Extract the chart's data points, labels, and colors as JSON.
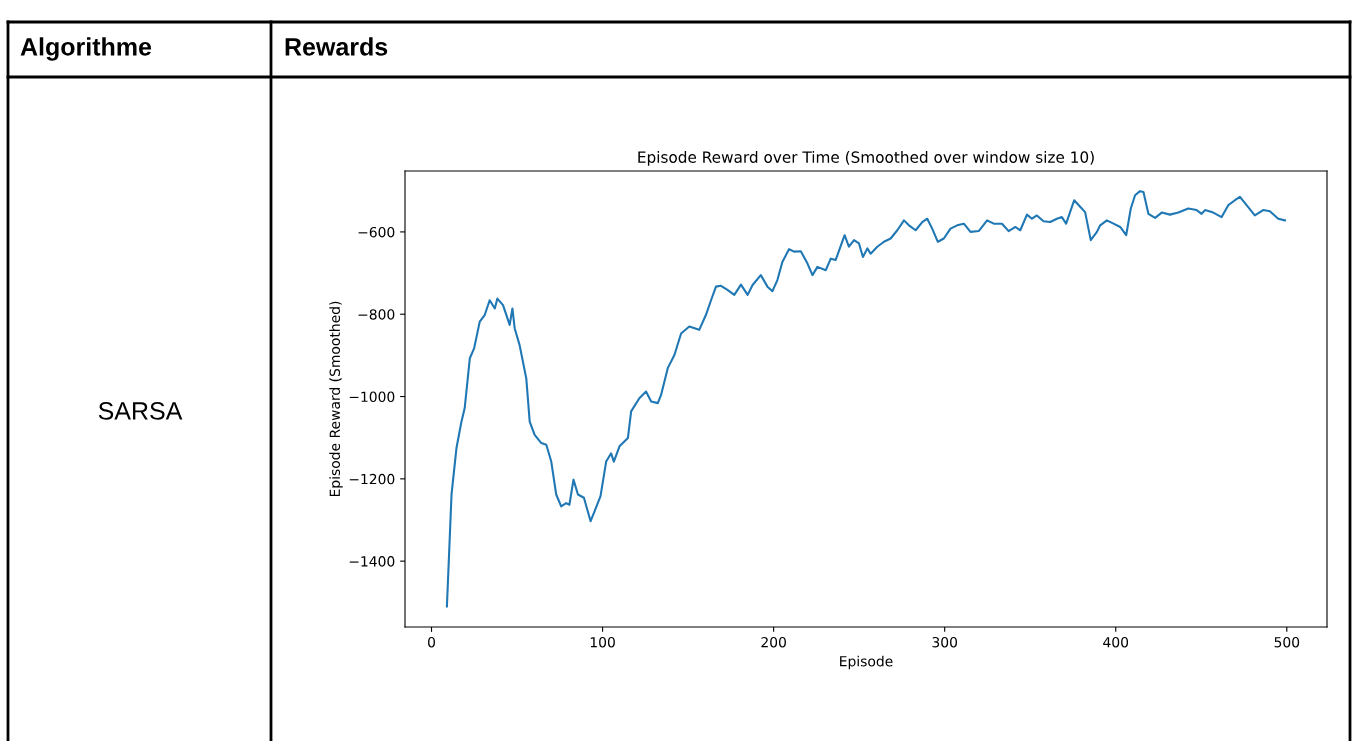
{
  "chart_data": {
    "type": "line",
    "title": "Episode Reward over Time (Smoothed over window size 10)",
    "xlabel": "Episode",
    "ylabel": "Episode Reward (Smoothed)",
    "annotations": [
      "Algorithme",
      "Rewards",
      "SARSA"
    ],
    "xlim": [
      -15.5,
      523.5
    ],
    "ylim": [
      -1560,
      -452
    ],
    "xticks": [
      0,
      100,
      200,
      300,
      400,
      500
    ],
    "yticks": [
      {
        "value": -1400,
        "label": "−1400"
      },
      {
        "value": -1200,
        "label": "−1200"
      },
      {
        "value": -1000,
        "label": "−1000"
      },
      {
        "value": -800,
        "label": "−800"
      },
      {
        "value": -600,
        "label": "−600"
      }
    ],
    "grid": false,
    "marker": "none",
    "line_style": "solid",
    "series": [
      {
        "color": "#1f77b4",
        "x": [
          9,
          11.7,
          14.6,
          17.5,
          19.4,
          22.4,
          24.9,
          28.2,
          31.1,
          34,
          37,
          38.5,
          41.8,
          45.7,
          47.3,
          48.6,
          51.5,
          55.4,
          57.4,
          60.3,
          64.2,
          67.1,
          70,
          72.9,
          75.8,
          78.7,
          80.6,
          83,
          85.6,
          89.1,
          93,
          95.3,
          98.8,
          102.1,
          105,
          106.6,
          109.9,
          114.8,
          116.7,
          121.5,
          125.4,
          128.4,
          132.3,
          134.2,
          138.1,
          142,
          145.9,
          150.7,
          156.5,
          160.4,
          163.4,
          166.3,
          169.2,
          173,
          177,
          180.9,
          184.8,
          187.7,
          192.5,
          196.4,
          199.3,
          202.2,
          205.1,
          209,
          212,
          215.9,
          219.8,
          222.7,
          225.6,
          230.5,
          233.4,
          236.3,
          241.5,
          244,
          247,
          249.9,
          252.2,
          254.8,
          256.7,
          260.6,
          264.5,
          268.4,
          272.3,
          276.2,
          279.1,
          283,
          286.9,
          289.8,
          292.7,
          296,
          299.5,
          303.4,
          307.3,
          311.2,
          315.1,
          319.9,
          324.8,
          328.7,
          333.5,
          337.4,
          341.3,
          344.2,
          348.1,
          351,
          353.9,
          357.8,
          361.7,
          365.6,
          368.5,
          371,
          375.7,
          379.2,
          382.1,
          385.4,
          389,
          390.9,
          394.8,
          398.7,
          402.6,
          406.1,
          408.8,
          411.3,
          414.2,
          416.2,
          419.1,
          423,
          426.9,
          431.7,
          436.6,
          442.4,
          447.3,
          450.2,
          452.2,
          457,
          461.9,
          465.8,
          469.7,
          472.6,
          476.5,
          481.3,
          486.2,
          490.1,
          495,
          498.9
        ],
        "values": [
          -1510,
          -1238,
          -1125,
          -1061,
          -1028,
          -907,
          -883,
          -818,
          -802,
          -766,
          -786,
          -762,
          -778,
          -826,
          -786,
          -834,
          -875,
          -956,
          -1061,
          -1093,
          -1113,
          -1117,
          -1158,
          -1238,
          -1267,
          -1259,
          -1263,
          -1202,
          -1238,
          -1246,
          -1303,
          -1279,
          -1242,
          -1158,
          -1138,
          -1158,
          -1121,
          -1101,
          -1036,
          -1004,
          -988,
          -1012,
          -1016,
          -996,
          -931,
          -899,
          -847,
          -830,
          -838,
          -802,
          -766,
          -733,
          -731,
          -741,
          -753,
          -728,
          -753,
          -729,
          -705,
          -733,
          -744,
          -717,
          -673,
          -642,
          -648,
          -647,
          -677,
          -705,
          -685,
          -693,
          -665,
          -668,
          -608,
          -636,
          -620,
          -628,
          -661,
          -640,
          -653,
          -636,
          -624,
          -616,
          -596,
          -572,
          -584,
          -596,
          -576,
          -568,
          -592,
          -624,
          -616,
          -592,
          -584,
          -580,
          -600,
          -598,
          -572,
          -580,
          -580,
          -598,
          -588,
          -596,
          -558,
          -568,
          -560,
          -574,
          -576,
          -568,
          -564,
          -580,
          -523,
          -539,
          -552,
          -620,
          -600,
          -584,
          -572,
          -580,
          -588,
          -608,
          -543,
          -511,
          -501,
          -503,
          -556,
          -566,
          -553,
          -558,
          -553,
          -543,
          -547,
          -556,
          -547,
          -553,
          -564,
          -535,
          -523,
          -515,
          -535,
          -560,
          -547,
          -550,
          -568,
          -572
        ]
      }
    ]
  }
}
